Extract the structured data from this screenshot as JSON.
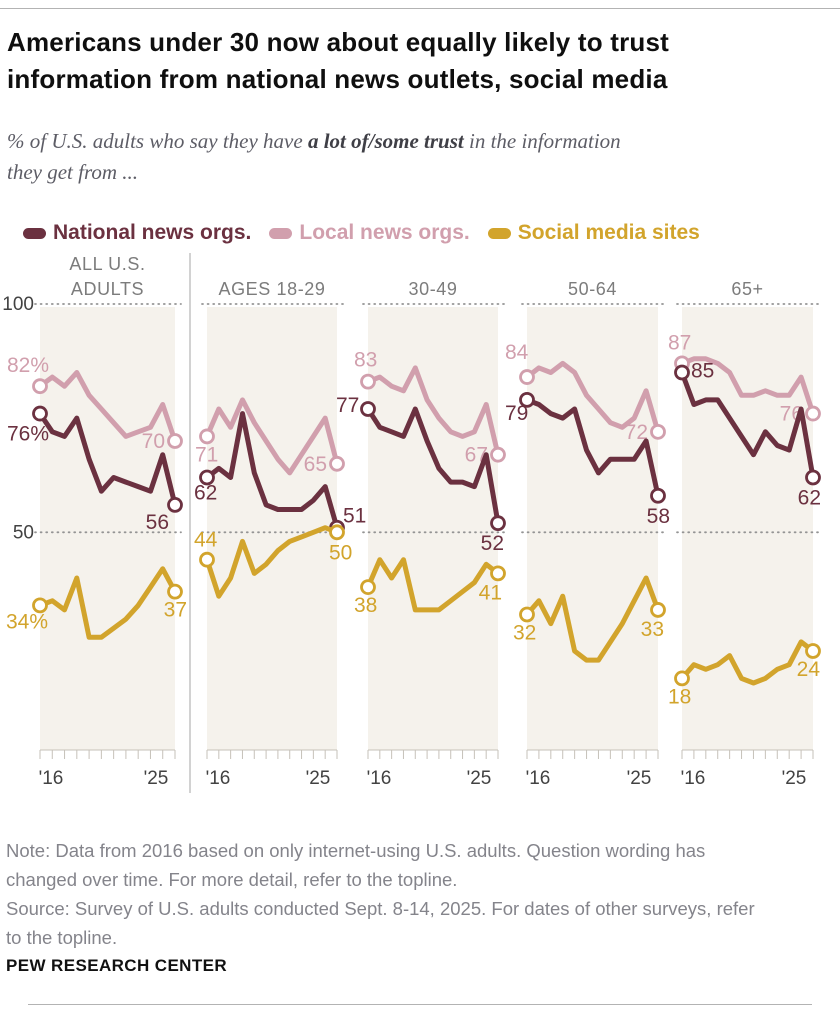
{
  "page": {
    "title_line1": "Americans under 30 now about equally likely to trust",
    "title_line2": "information from national news outlets, social media",
    "subtitle": {
      "prefix": "% of U.S. adults who say they have ",
      "bold": "a lot of/some trust",
      "rest": " in the information",
      "line2": "they get from ..."
    },
    "footer": {
      "note_lines": [
        "Note: Data from 2016 based on only internet-using U.S. adults. Question wording has",
        "changed over time. For more detail, refer to the topline.",
        "Source: Survey of U.S. adults conducted Sept. 8-14, 2025. For dates of other surveys, refer",
        "to the topline."
      ],
      "brand": "PEW RESEARCH CENTER"
    }
  },
  "legend": [
    {
      "id": "national",
      "label": "National news orgs.",
      "color": "#6b3140"
    },
    {
      "id": "local",
      "label": "Local news orgs.",
      "color": "#d19fad"
    },
    {
      "id": "social",
      "label": "Social media sites",
      "color": "#d2a42c"
    }
  ],
  "chart_data": {
    "type": "line",
    "band_color": "#f5f2ec",
    "ylim": [
      0,
      100
    ],
    "y_gridlines": [
      {
        "value": 100,
        "label": "100"
      },
      {
        "value": 50,
        "label": "50"
      }
    ],
    "x_axis": {
      "start_label": "'16",
      "end_label": "'25",
      "start_year": 2016,
      "end_year": 2025
    },
    "series_meta": [
      {
        "id": "local",
        "label": "Local news orgs.",
        "color": "#d19fad"
      },
      {
        "id": "national",
        "label": "National news orgs.",
        "color": "#6b3140"
      },
      {
        "id": "social",
        "label": "Social media sites",
        "color": "#d2a42c"
      }
    ],
    "draw_order": [
      "local",
      "national",
      "social"
    ],
    "panels": [
      {
        "title_lines": [
          "ALL U.S.",
          "ADULTS"
        ],
        "series": {
          "local": {
            "values": [
              82,
              84,
              82,
              85,
              80,
              77,
              74,
              71,
              72,
              73,
              78,
              70
            ],
            "start": {
              "text": "82%",
              "dx": -33,
              "dy": -14,
              "a": "start"
            },
            "end": {
              "text": "70",
              "dx": -10,
              "dy": 7,
              "a": "end"
            }
          },
          "national": {
            "values": [
              76,
              72,
              71,
              75,
              66,
              59,
              62,
              61,
              60,
              59,
              67,
              56
            ],
            "start": {
              "text": "76%",
              "dx": -33,
              "dy": 27,
              "a": "start"
            },
            "end": {
              "text": "56",
              "dx": -6,
              "dy": 24,
              "a": "end"
            }
          },
          "social": {
            "values": [
              34,
              35,
              33,
              40,
              27,
              27,
              29,
              31,
              34,
              38,
              42,
              37
            ],
            "start": {
              "text": "34%",
              "dx": -34,
              "dy": 23,
              "a": "start"
            },
            "end": {
              "text": "37",
              "dx": 12,
              "dy": 25,
              "a": "end"
            }
          }
        }
      },
      {
        "title_lines": [
          "AGES 18-29"
        ],
        "series": {
          "local": {
            "values": [
              71,
              77,
              73,
              79,
              74,
              70,
              66,
              63,
              67,
              71,
              75,
              65
            ],
            "start": {
              "text": "71",
              "dx": -12,
              "dy": 25,
              "a": "start"
            },
            "end": {
              "text": "65",
              "dx": -10,
              "dy": 7,
              "a": "end"
            }
          },
          "national": {
            "values": [
              62,
              64,
              62,
              76,
              63,
              56,
              55,
              55,
              55,
              57,
              60,
              51
            ],
            "start": {
              "text": "62",
              "dx": -13,
              "dy": 22,
              "a": "start"
            },
            "end": {
              "text": "51",
              "dx": 6,
              "dy": -5,
              "a": "start"
            }
          },
          "social": {
            "values": [
              44,
              36,
              40,
              48,
              41,
              43,
              46,
              48,
              49,
              50,
              51,
              50
            ],
            "start": {
              "text": "44",
              "dx": -13,
              "dy": -13,
              "a": "start"
            },
            "end": {
              "text": "50",
              "dx": -8,
              "dy": 27,
              "a": "start"
            }
          }
        }
      },
      {
        "title_lines": [
          "30-49"
        ],
        "series": {
          "local": {
            "values": [
              83,
              84,
              82,
              81,
              86,
              79,
              75,
              72,
              71,
              72,
              78,
              67
            ],
            "start": {
              "text": "83",
              "dx": -14,
              "dy": -15,
              "a": "start"
            },
            "end": {
              "text": "67",
              "dx": -10,
              "dy": 7,
              "a": "end"
            }
          },
          "national": {
            "values": [
              77,
              73,
              72,
              71,
              77,
              70,
              64,
              61,
              61,
              60,
              67,
              52
            ],
            "start": {
              "text": "77",
              "dx": -32,
              "dy": 3,
              "a": "start"
            },
            "end": {
              "text": "52",
              "dx": 6,
              "dy": 27,
              "a": "end"
            }
          },
          "social": {
            "values": [
              38,
              44,
              40,
              44,
              33,
              33,
              33,
              35,
              37,
              39,
              43,
              41
            ],
            "start": {
              "text": "38",
              "dx": -14,
              "dy": 25,
              "a": "start"
            },
            "end": {
              "text": "41",
              "dx": 4,
              "dy": 26,
              "a": "end"
            }
          }
        }
      },
      {
        "title_lines": [
          "50-64"
        ],
        "series": {
          "local": {
            "values": [
              84,
              86,
              85,
              87,
              85,
              80,
              77,
              74,
              73,
              75,
              81,
              72
            ],
            "start": {
              "text": "84",
              "dx": -22,
              "dy": -18,
              "a": "start"
            },
            "end": {
              "text": "72",
              "dx": -10,
              "dy": 7,
              "a": "end"
            }
          },
          "national": {
            "values": [
              79,
              78,
              76,
              75,
              77,
              68,
              63,
              66,
              66,
              66,
              70,
              58
            ],
            "start": {
              "text": "79",
              "dx": -22,
              "dy": 20,
              "a": "start"
            },
            "end": {
              "text": "58",
              "dx": 12,
              "dy": 27,
              "a": "end"
            }
          },
          "social": {
            "values": [
              32,
              35,
              30,
              36,
              24,
              22,
              22,
              26,
              30,
              35,
              40,
              33
            ],
            "start": {
              "text": "32",
              "dx": -14,
              "dy": 25,
              "a": "start"
            },
            "end": {
              "text": "33",
              "dx": 6,
              "dy": 26,
              "a": "end"
            }
          }
        }
      },
      {
        "title_lines": [
          "65+"
        ],
        "series": {
          "local": {
            "values": [
              87,
              88,
              88,
              87,
              85,
              80,
              80,
              81,
              80,
              80,
              84,
              76
            ],
            "start": {
              "text": "87",
              "dx": -14,
              "dy": -14,
              "a": "start"
            },
            "end": {
              "text": "76",
              "dx": -10,
              "dy": 7,
              "a": "end"
            }
          },
          "national": {
            "values": [
              85,
              78,
              79,
              79,
              75,
              71,
              67,
              72,
              69,
              68,
              77,
              62
            ],
            "start": {
              "text": "85",
              "dx": 9,
              "dy": 5,
              "a": "start"
            },
            "end": {
              "text": "62",
              "dx": 8,
              "dy": 27,
              "a": "end"
            }
          },
          "social": {
            "values": [
              18,
              21,
              20,
              21,
              23,
              18,
              17,
              18,
              20,
              21,
              26,
              24
            ],
            "start": {
              "text": "18",
              "dx": -14,
              "dy": 25,
              "a": "start"
            },
            "end": {
              "text": "24",
              "dx": 7,
              "dy": 25,
              "a": "end"
            }
          }
        }
      }
    ]
  }
}
